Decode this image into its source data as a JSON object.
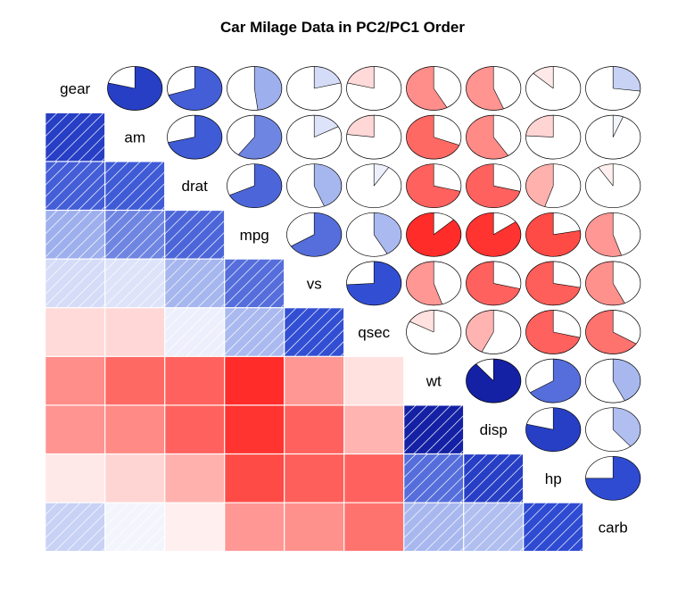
{
  "chart_data": {
    "type": "heatmap",
    "title": "Car Milage Data in PC2/PC1 Order",
    "variables": [
      "gear",
      "am",
      "drat",
      "mpg",
      "vs",
      "qsec",
      "wt",
      "disp",
      "hp",
      "carb"
    ],
    "lower_panel": "shade",
    "upper_panel": "pie",
    "color_scale": {
      "negative": "#ff0000",
      "zero": "#ffffff",
      "positive": "#00007f"
    },
    "correlations": [
      [
        1.0,
        0.79,
        0.7,
        0.48,
        0.21,
        -0.21,
        -0.58,
        -0.56,
        -0.13,
        0.27
      ],
      [
        0.79,
        1.0,
        0.71,
        0.6,
        0.17,
        -0.23,
        -0.69,
        -0.59,
        -0.24,
        0.06
      ],
      [
        0.7,
        0.71,
        1.0,
        0.68,
        0.44,
        0.09,
        -0.71,
        -0.71,
        -0.45,
        -0.09
      ],
      [
        0.48,
        0.6,
        0.68,
        1.0,
        0.66,
        0.42,
        -0.87,
        -0.85,
        -0.78,
        -0.55
      ],
      [
        0.21,
        0.17,
        0.44,
        0.66,
        1.0,
        0.74,
        -0.55,
        -0.71,
        -0.72,
        -0.57
      ],
      [
        -0.21,
        -0.23,
        0.09,
        0.42,
        0.74,
        1.0,
        -0.17,
        -0.43,
        -0.71,
        -0.66
      ],
      [
        -0.58,
        -0.69,
        -0.71,
        -0.87,
        -0.55,
        -0.17,
        1.0,
        0.89,
        0.66,
        0.43
      ],
      [
        -0.56,
        -0.59,
        -0.71,
        -0.85,
        -0.71,
        -0.43,
        0.89,
        1.0,
        0.79,
        0.39
      ],
      [
        -0.13,
        -0.24,
        -0.45,
        -0.78,
        -0.72,
        -0.71,
        0.66,
        0.79,
        1.0,
        0.75
      ],
      [
        0.27,
        0.06,
        -0.09,
        -0.55,
        -0.57,
        -0.66,
        0.43,
        0.39,
        0.75,
        1.0
      ]
    ]
  }
}
